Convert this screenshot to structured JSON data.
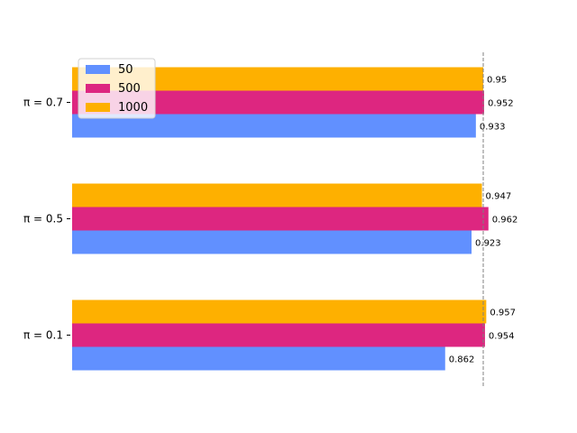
{
  "chart_data": {
    "type": "bar",
    "orientation": "horizontal",
    "categories": [
      "π = 0.1",
      "π = 0.5",
      "π = 0.7"
    ],
    "series": [
      {
        "name": "50",
        "color": "#6190ff",
        "values": [
          0.862,
          0.923,
          0.933
        ]
      },
      {
        "name": "500",
        "color": "#dd2680",
        "values": [
          0.954,
          0.962,
          0.952
        ]
      },
      {
        "name": "1000",
        "color": "#feb000",
        "values": [
          0.957,
          0.947,
          0.95
        ]
      }
    ],
    "xlim": [
      0,
      1.0
    ],
    "reference_line": {
      "x": 0.95,
      "style": "dashed",
      "color": "#808080"
    },
    "legend_placement": "upper-left",
    "grid": false,
    "title": "",
    "xlabel": "",
    "ylabel": ""
  }
}
